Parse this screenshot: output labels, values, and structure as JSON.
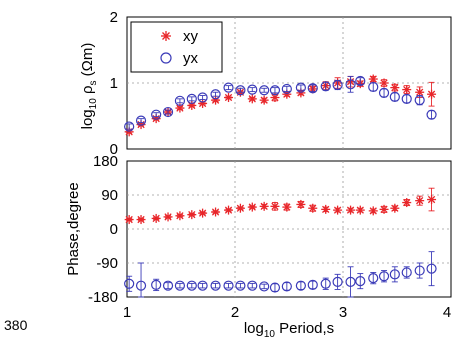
{
  "page_number": "380",
  "chart_data": [
    {
      "type": "scatter",
      "ylabel": "log10 ρs (Ωm)",
      "ylabel_parts": {
        "prefix": "log",
        "sub": "10",
        "rho": "ρ",
        "rho_sub": "s",
        "unit": "(Ωm)"
      },
      "xlim": [
        1,
        4
      ],
      "ylim": [
        0,
        2
      ],
      "yticks": [
        "0",
        "1",
        "2"
      ],
      "grid": true,
      "legend": {
        "placement": "top-left",
        "entries": [
          "xy",
          "yx"
        ]
      },
      "series": [
        {
          "name": "xy",
          "marker": "asterisk",
          "color": "#e8262a",
          "x": [
            1.02,
            1.13,
            1.27,
            1.38,
            1.49,
            1.6,
            1.7,
            1.82,
            1.94,
            2.05,
            2.16,
            2.27,
            2.37,
            2.48,
            2.61,
            2.72,
            2.84,
            2.95,
            3.07,
            3.16,
            3.28,
            3.38,
            3.48,
            3.59,
            3.71,
            3.82
          ],
          "y": [
            0.26,
            0.37,
            0.46,
            0.56,
            0.62,
            0.66,
            0.69,
            0.74,
            0.78,
            0.86,
            0.76,
            0.74,
            0.78,
            0.83,
            0.85,
            0.91,
            0.96,
            1.0,
            1.02,
            0.99,
            1.06,
            1.0,
            0.93,
            0.9,
            0.86,
            0.83
          ],
          "err": [
            0.02,
            0.02,
            0.02,
            0.02,
            0.02,
            0.02,
            0.02,
            0.02,
            0.02,
            0.02,
            0.02,
            0.03,
            0.05,
            0.03,
            0.03,
            0.04,
            0.06,
            0.08,
            0.08,
            0.04,
            0.04,
            0.05,
            0.05,
            0.06,
            0.08,
            0.18
          ]
        },
        {
          "name": "yx",
          "marker": "circle",
          "color": "#3b3bb8",
          "x": [
            1.02,
            1.13,
            1.27,
            1.38,
            1.49,
            1.6,
            1.7,
            1.82,
            1.94,
            2.05,
            2.16,
            2.27,
            2.37,
            2.48,
            2.61,
            2.72,
            2.84,
            2.95,
            3.07,
            3.16,
            3.28,
            3.38,
            3.48,
            3.59,
            3.71,
            3.82
          ],
          "y": [
            0.34,
            0.43,
            0.52,
            0.56,
            0.73,
            0.76,
            0.78,
            0.83,
            0.93,
            0.89,
            0.9,
            0.89,
            0.89,
            0.91,
            0.93,
            0.92,
            0.95,
            0.97,
            0.98,
            1.03,
            0.94,
            0.85,
            0.79,
            0.76,
            0.74,
            0.52
          ],
          "err": [
            0.04,
            0.03,
            0.03,
            0.03,
            0.03,
            0.03,
            0.03,
            0.03,
            0.03,
            0.03,
            0.03,
            0.03,
            0.04,
            0.04,
            0.04,
            0.05,
            0.06,
            0.07,
            0.12,
            0.05,
            0.06,
            0.06,
            0.06,
            0.06,
            0.07,
            0.06
          ]
        }
      ]
    },
    {
      "type": "scatter",
      "xlabel": "log10 Period,s",
      "xlabel_parts": {
        "prefix": "log",
        "sub": "10",
        "rest": "Period,s"
      },
      "ylabel": "Phase,degree",
      "xlim": [
        1,
        4
      ],
      "ylim": [
        -180,
        180
      ],
      "xticks": [
        "1",
        "2",
        "3",
        "4"
      ],
      "yticks": [
        "-180",
        "-90",
        "0",
        "90",
        "180"
      ],
      "grid": true,
      "series": [
        {
          "name": "xy",
          "marker": "asterisk",
          "color": "#e8262a",
          "x": [
            1.02,
            1.13,
            1.27,
            1.38,
            1.49,
            1.6,
            1.7,
            1.82,
            1.94,
            2.05,
            2.16,
            2.27,
            2.37,
            2.48,
            2.61,
            2.72,
            2.84,
            2.95,
            3.07,
            3.16,
            3.28,
            3.38,
            3.48,
            3.59,
            3.71,
            3.82
          ],
          "y": [
            25,
            25,
            28,
            32,
            35,
            38,
            42,
            45,
            50,
            55,
            58,
            60,
            60,
            58,
            65,
            55,
            52,
            50,
            50,
            50,
            48,
            52,
            55,
            70,
            75,
            78
          ],
          "err": [
            3,
            3,
            3,
            3,
            3,
            3,
            3,
            3,
            3,
            3,
            3,
            5,
            10,
            8,
            8,
            8,
            6,
            5,
            5,
            5,
            5,
            8,
            6,
            8,
            12,
            30
          ]
        },
        {
          "name": "yx",
          "marker": "circle",
          "color": "#3b3bb8",
          "x": [
            1.02,
            1.13,
            1.27,
            1.38,
            1.49,
            1.6,
            1.7,
            1.82,
            1.94,
            2.05,
            2.16,
            2.27,
            2.37,
            2.48,
            2.61,
            2.72,
            2.84,
            2.95,
            3.07,
            3.16,
            3.28,
            3.38,
            3.48,
            3.59,
            3.71,
            3.82
          ],
          "y": [
            -145,
            -150,
            -148,
            -150,
            -150,
            -150,
            -150,
            -150,
            -150,
            -150,
            -150,
            -152,
            -155,
            -152,
            -150,
            -148,
            -145,
            -140,
            -140,
            -138,
            -130,
            -125,
            -120,
            -115,
            -110,
            -105
          ],
          "err": [
            20,
            60,
            15,
            8,
            6,
            6,
            6,
            6,
            6,
            6,
            6,
            6,
            10,
            10,
            10,
            10,
            15,
            20,
            40,
            20,
            15,
            15,
            20,
            15,
            20,
            45
          ]
        }
      ]
    }
  ]
}
